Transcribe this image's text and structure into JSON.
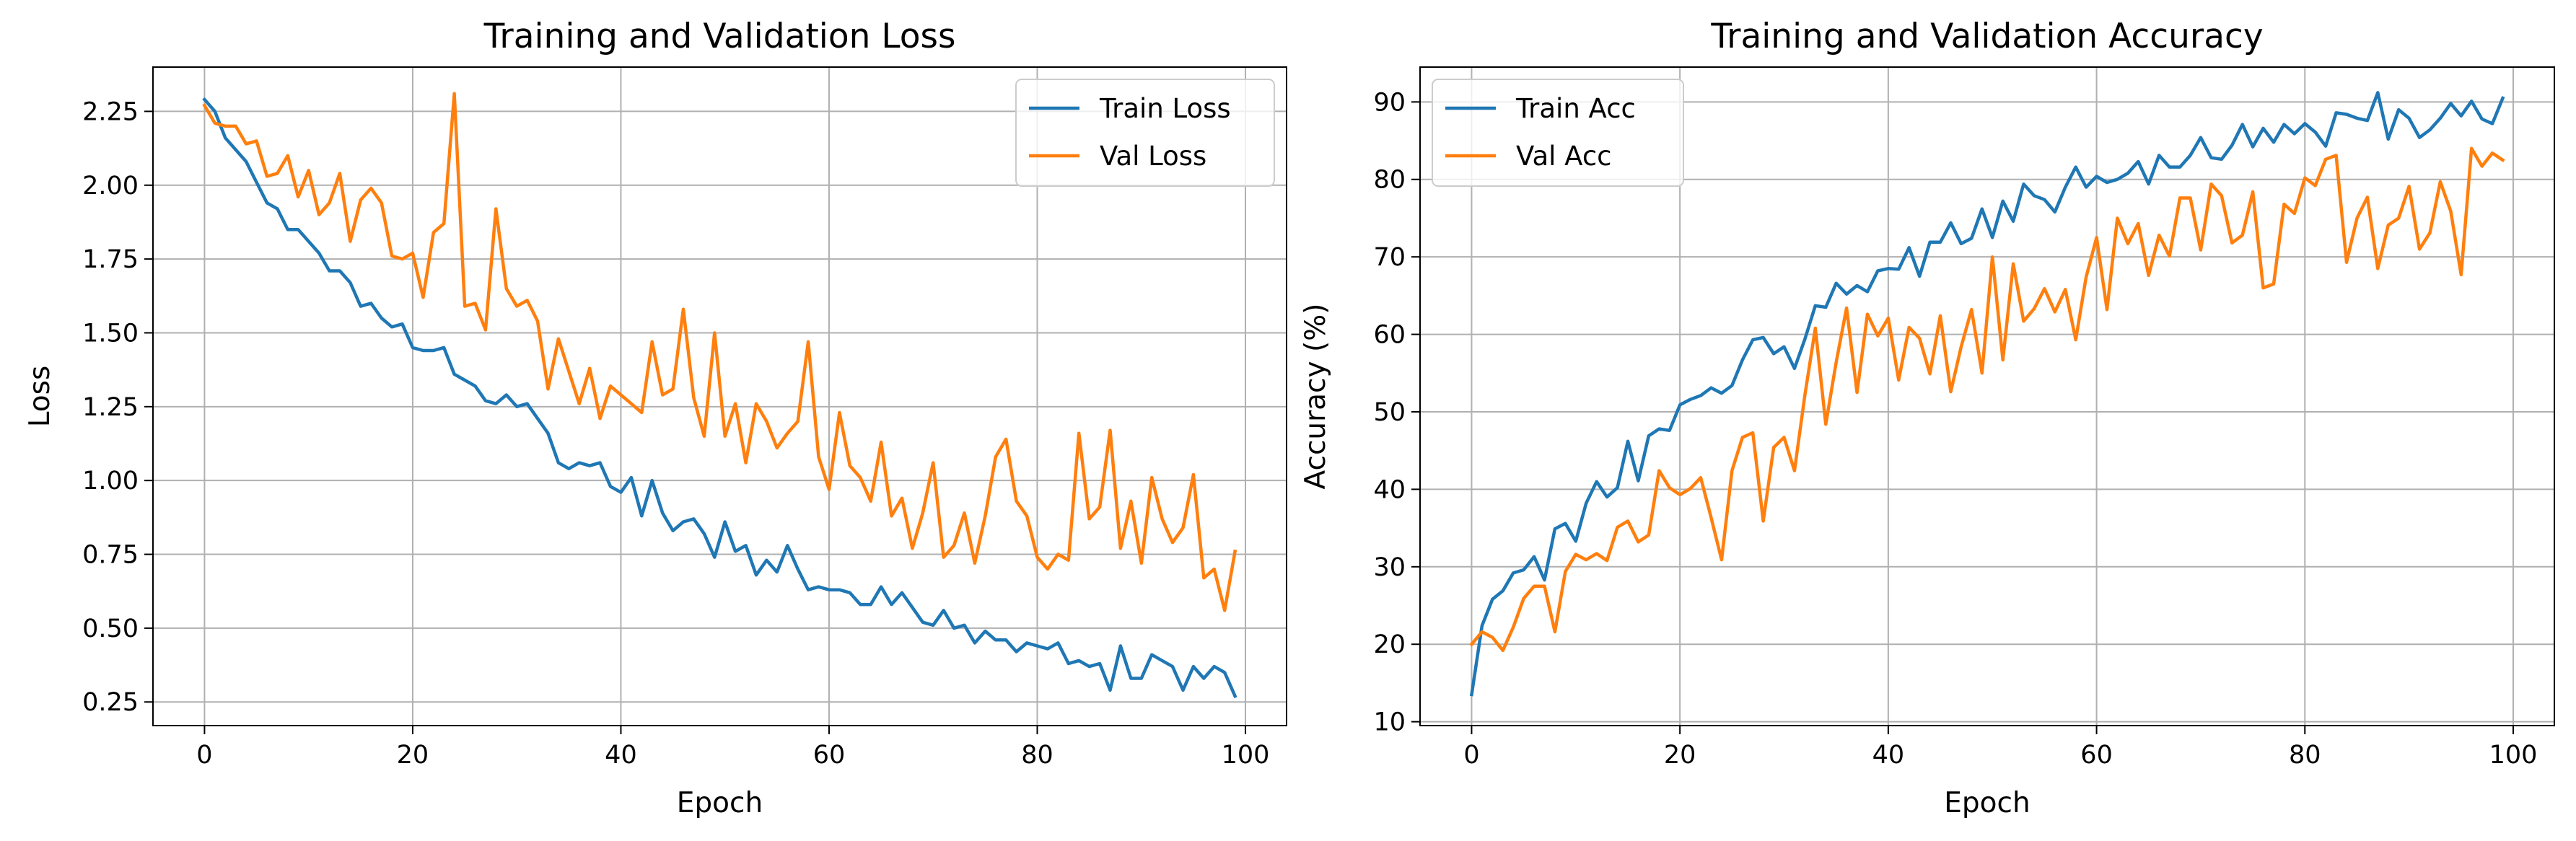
{
  "colors": {
    "train": "#1f77b4",
    "val": "#ff7f0e",
    "grid": "#b0b0b0",
    "axes": "#000000"
  },
  "chart_data": [
    {
      "type": "line",
      "title": "Training and Validation Loss",
      "xlabel": "Epoch",
      "ylabel": "Loss",
      "xlim": [
        -4.95,
        103.95
      ],
      "ylim": [
        0.17,
        2.4
      ],
      "xticks": [
        0,
        20,
        40,
        60,
        80,
        100
      ],
      "xtick_labels": [
        "0",
        "20",
        "40",
        "60",
        "80",
        "100"
      ],
      "yticks": [
        0.25,
        0.5,
        0.75,
        1.0,
        1.25,
        1.5,
        1.75,
        2.0,
        2.25
      ],
      "ytick_labels": [
        "0.25",
        "0.50",
        "0.75",
        "1.00",
        "1.25",
        "1.50",
        "1.75",
        "2.00",
        "2.25"
      ],
      "grid": true,
      "legend_position": "top-right",
      "series": [
        {
          "name": "Train Loss",
          "color_key": "train",
          "values": [
            2.29,
            2.25,
            2.16,
            2.12,
            2.08,
            2.01,
            1.94,
            1.92,
            1.85,
            1.85,
            1.81,
            1.77,
            1.71,
            1.71,
            1.67,
            1.59,
            1.6,
            1.55,
            1.52,
            1.53,
            1.45,
            1.44,
            1.44,
            1.45,
            1.36,
            1.34,
            1.32,
            1.27,
            1.26,
            1.29,
            1.25,
            1.26,
            1.21,
            1.16,
            1.06,
            1.04,
            1.06,
            1.05,
            1.06,
            0.98,
            0.96,
            1.01,
            0.88,
            1.0,
            0.89,
            0.83,
            0.86,
            0.87,
            0.82,
            0.74,
            0.86,
            0.76,
            0.78,
            0.68,
            0.73,
            0.69,
            0.78,
            0.7,
            0.63,
            0.64,
            0.63,
            0.63,
            0.62,
            0.58,
            0.58,
            0.64,
            0.58,
            0.62,
            0.57,
            0.52,
            0.51,
            0.56,
            0.5,
            0.51,
            0.45,
            0.49,
            0.46,
            0.46,
            0.42,
            0.45,
            0.44,
            0.43,
            0.45,
            0.38,
            0.39,
            0.37,
            0.38,
            0.29,
            0.44,
            0.33,
            0.33,
            0.41,
            0.39,
            0.37,
            0.29,
            0.37,
            0.33,
            0.37,
            0.35,
            0.27
          ]
        },
        {
          "name": "Val Loss",
          "color_key": "val",
          "values": [
            2.27,
            2.21,
            2.2,
            2.2,
            2.14,
            2.15,
            2.03,
            2.04,
            2.1,
            1.96,
            2.05,
            1.9,
            1.94,
            2.04,
            1.81,
            1.95,
            1.99,
            1.94,
            1.76,
            1.75,
            1.77,
            1.62,
            1.84,
            1.87,
            2.31,
            1.59,
            1.6,
            1.51,
            1.92,
            1.65,
            1.59,
            1.61,
            1.54,
            1.31,
            1.48,
            1.37,
            1.26,
            1.38,
            1.21,
            1.32,
            1.29,
            1.26,
            1.23,
            1.47,
            1.29,
            1.31,
            1.58,
            1.28,
            1.15,
            1.5,
            1.15,
            1.26,
            1.06,
            1.26,
            1.2,
            1.11,
            1.16,
            1.2,
            1.47,
            1.08,
            0.97,
            1.23,
            1.05,
            1.01,
            0.93,
            1.13,
            0.88,
            0.94,
            0.77,
            0.89,
            1.06,
            0.74,
            0.78,
            0.89,
            0.72,
            0.88,
            1.08,
            1.14,
            0.93,
            0.88,
            0.74,
            0.7,
            0.75,
            0.73,
            1.16,
            0.87,
            0.91,
            1.17,
            0.77,
            0.93,
            0.72,
            1.01,
            0.87,
            0.79,
            0.84,
            1.02,
            0.67,
            0.7,
            0.56,
            0.76
          ]
        }
      ]
    },
    {
      "type": "line",
      "title": "Training and Validation Accuracy",
      "xlabel": "Epoch",
      "ylabel": "Accuracy (%)",
      "xlim": [
        -4.95,
        103.95
      ],
      "ylim": [
        9.5,
        94.5
      ],
      "xticks": [
        0,
        20,
        40,
        60,
        80,
        100
      ],
      "xtick_labels": [
        "0",
        "20",
        "40",
        "60",
        "80",
        "100"
      ],
      "yticks": [
        10,
        20,
        30,
        40,
        50,
        60,
        70,
        80,
        90
      ],
      "ytick_labels": [
        "10",
        "20",
        "30",
        "40",
        "50",
        "60",
        "70",
        "80",
        "90"
      ],
      "grid": true,
      "legend_position": "top-left",
      "series": [
        {
          "name": "Train Acc",
          "color_key": "train",
          "values": [
            13.5,
            22.4,
            25.8,
            26.9,
            29.2,
            29.6,
            31.3,
            28.3,
            34.9,
            35.6,
            33.3,
            38.2,
            41.0,
            39.0,
            40.2,
            46.2,
            41.1,
            46.9,
            47.8,
            47.6,
            50.9,
            51.6,
            52.1,
            53.1,
            52.4,
            53.4,
            56.7,
            59.3,
            59.6,
            57.5,
            58.4,
            55.6,
            59.4,
            63.7,
            63.5,
            66.6,
            65.2,
            66.3,
            65.5,
            68.2,
            68.5,
            68.4,
            71.2,
            67.5,
            71.9,
            71.9,
            74.4,
            71.7,
            72.4,
            76.2,
            72.5,
            77.2,
            74.6,
            79.4,
            77.9,
            77.4,
            75.8,
            79.0,
            81.6,
            79.0,
            80.4,
            79.6,
            80.0,
            80.8,
            82.3,
            79.4,
            83.1,
            81.6,
            81.6,
            83.1,
            85.4,
            82.8,
            82.6,
            84.4,
            87.1,
            84.2,
            86.6,
            84.8,
            87.1,
            85.9,
            87.2,
            86.1,
            84.3,
            88.6,
            88.4,
            87.9,
            87.6,
            91.2,
            85.2,
            89.0,
            87.9,
            85.4,
            86.4,
            87.9,
            89.8,
            88.2,
            90.1,
            87.8,
            87.2,
            90.5
          ]
        },
        {
          "name": "Val Acc",
          "color_key": "val",
          "values": [
            20.0,
            21.6,
            20.9,
            19.2,
            22.2,
            25.9,
            27.5,
            27.5,
            21.6,
            29.4,
            31.6,
            30.9,
            31.7,
            30.8,
            35.1,
            35.9,
            33.2,
            34.1,
            42.4,
            40.2,
            39.3,
            40.1,
            41.5,
            36.3,
            30.9,
            42.4,
            46.7,
            47.3,
            35.9,
            45.4,
            46.7,
            42.4,
            52.2,
            60.8,
            48.4,
            56.4,
            63.4,
            52.5,
            62.6,
            59.8,
            62.1,
            54.1,
            60.9,
            59.5,
            54.9,
            62.4,
            52.6,
            58.4,
            63.2,
            55.0,
            70.0,
            56.7,
            69.1,
            61.7,
            63.3,
            65.9,
            62.9,
            65.8,
            59.3,
            67.4,
            72.5,
            63.2,
            75.0,
            71.7,
            74.3,
            67.6,
            72.8,
            70.1,
            77.6,
            77.6,
            70.9,
            79.4,
            77.9,
            71.8,
            72.8,
            78.4,
            66.0,
            66.5,
            76.8,
            75.6,
            80.2,
            79.2,
            82.6,
            83.1,
            69.3,
            75.0,
            77.7,
            68.5,
            74.1,
            75.0,
            79.1,
            71.0,
            73.1,
            79.7,
            75.9,
            67.7,
            84.0,
            81.7,
            83.4,
            82.5
          ]
        }
      ]
    }
  ]
}
